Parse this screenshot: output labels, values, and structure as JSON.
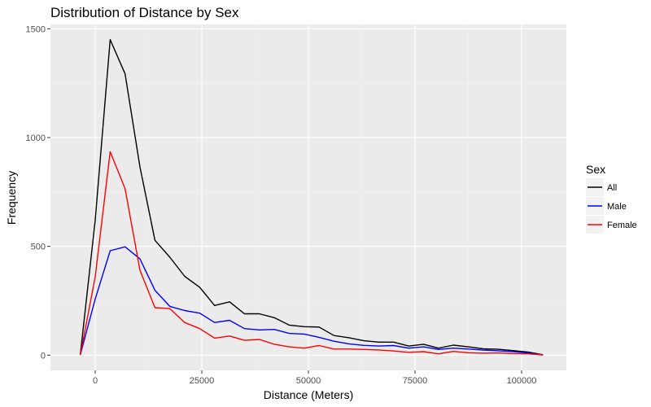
{
  "chart_data": {
    "type": "line",
    "title": "Distribution of Distance by Sex",
    "xlabel": "Distance (Meters)",
    "ylabel": "Frequency",
    "xlim": [
      -10500,
      110500
    ],
    "ylim": [
      -70,
      1520
    ],
    "x_ticks": [
      0,
      25000,
      50000,
      75000,
      100000
    ],
    "x_tick_labels": [
      "0",
      "25000",
      "50000",
      "75000",
      "100000"
    ],
    "y_ticks": [
      0,
      500,
      1000,
      1500
    ],
    "y_tick_labels": [
      "0",
      "500",
      "1000",
      "1500"
    ],
    "grid": true,
    "legend": {
      "title": "Sex",
      "position": "right"
    },
    "x": [
      -3500,
      0,
      3500,
      7000,
      10500,
      14000,
      17500,
      21000,
      24500,
      28000,
      31500,
      35000,
      38500,
      42000,
      45500,
      49000,
      52500,
      56000,
      59500,
      63000,
      66500,
      70000,
      73500,
      77000,
      80500,
      84000,
      87500,
      91000,
      94500,
      98000,
      101500,
      105000
    ],
    "series": [
      {
        "name": "All",
        "color": "#000000",
        "values": [
          3,
          620,
          1450,
          1293,
          865,
          528,
          450,
          362,
          312,
          228,
          245,
          190,
          190,
          172,
          138,
          131,
          129,
          90,
          80,
          66,
          60,
          60,
          42,
          50,
          32,
          46,
          38,
          29,
          27,
          21,
          14,
          2
        ]
      },
      {
        "name": "Male",
        "color": "#0000ff",
        "values": [
          2,
          258,
          480,
          498,
          442,
          298,
          224,
          205,
          193,
          150,
          160,
          122,
          116,
          118,
          100,
          97,
          82,
          64,
          52,
          45,
          42,
          44,
          32,
          38,
          26,
          32,
          28,
          23,
          20,
          16,
          10,
          1
        ]
      },
      {
        "name": "Female",
        "color": "#ff0000",
        "values": [
          1,
          360,
          935,
          765,
          390,
          218,
          214,
          150,
          122,
          78,
          88,
          68,
          72,
          50,
          38,
          32,
          44,
          28,
          28,
          26,
          24,
          19,
          13,
          16,
          6,
          17,
          11,
          9,
          10,
          7,
          6,
          1
        ]
      }
    ]
  }
}
